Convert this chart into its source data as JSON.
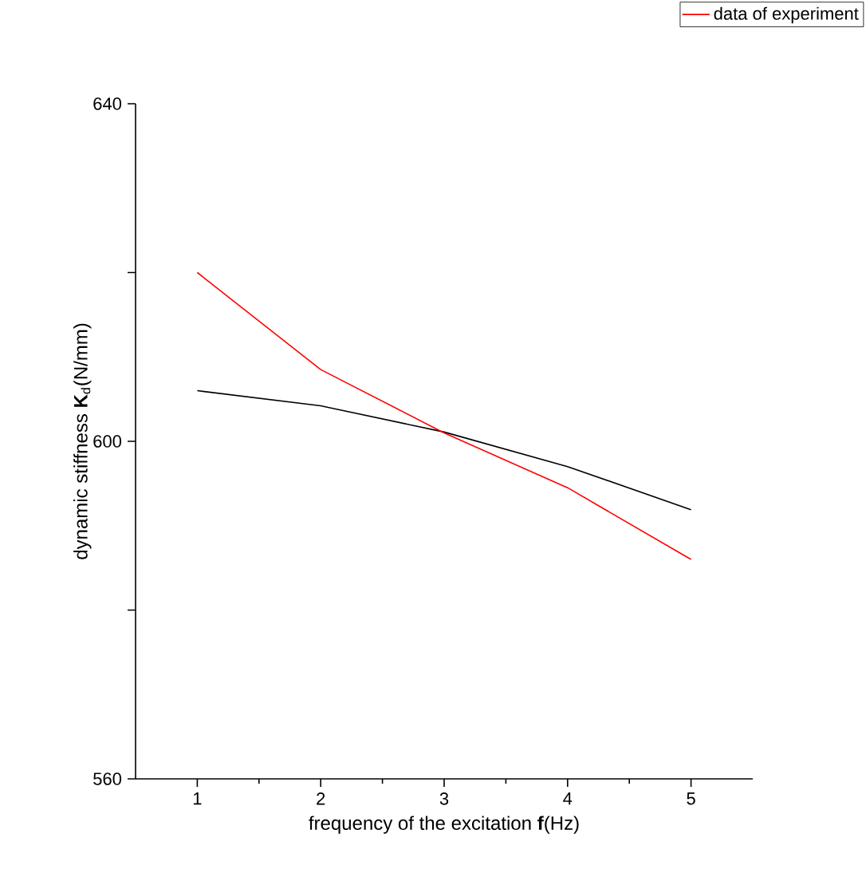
{
  "chart_data": {
    "type": "line",
    "xlabel": "frequency of the excitation **f**(Hz)",
    "ylabel": "dynamic stiffness **K**$_{d}$(N/mm)",
    "x": [
      1,
      2,
      3,
      4,
      5
    ],
    "series": [
      {
        "color": "#000000",
        "values": [
          606,
          604.2,
          601.1,
          597,
          591.9
        ]
      },
      {
        "name": "data of experiment",
        "color": "#ff0000",
        "values": [
          620,
          608.5,
          601,
          594.5,
          586
        ]
      }
    ],
    "xlim": [
      0.5,
      5.5
    ],
    "xticks": [
      1,
      2,
      3,
      4,
      5
    ],
    "ylim": [
      560,
      640
    ],
    "yticks": [
      560,
      {
        "value": 580,
        "label": null
      },
      600,
      {
        "value": 620,
        "label": null
      },
      640
    ],
    "grid": false,
    "legend": "top right",
    "marker": "none",
    "line_style": "solid"
  }
}
